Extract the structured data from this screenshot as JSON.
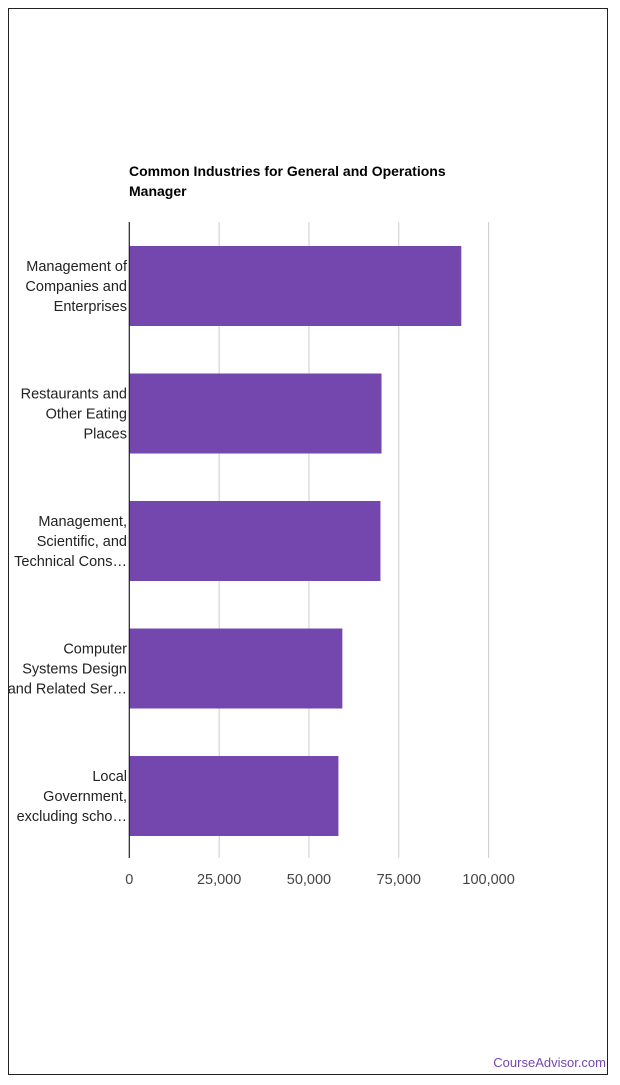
{
  "chart_data": {
    "type": "bar",
    "orientation": "horizontal",
    "title": "Common Industries for General and Operations Manager",
    "categories": [
      [
        "Management of",
        "Companies and",
        "Enterprises"
      ],
      [
        "Restaurants and",
        "Other Eating",
        "Places"
      ],
      [
        "Management,",
        "Scientific, and",
        "Technical Cons…"
      ],
      [
        "Computer",
        "Systems Design",
        "and Related Ser…"
      ],
      [
        "Local",
        "Government,",
        "excluding scho…"
      ]
    ],
    "values": [
      92400,
      70200,
      69900,
      59300,
      58200
    ],
    "xlim": [
      0,
      100000
    ],
    "xticks": [
      0,
      25000,
      50000,
      75000,
      100000
    ],
    "xtick_labels": [
      "0",
      "25,000",
      "50,000",
      "75,000",
      "100,000"
    ],
    "grid": true,
    "bar_color": "#7347ad"
  },
  "footer": {
    "credit": "CourseAdvisor.com"
  }
}
